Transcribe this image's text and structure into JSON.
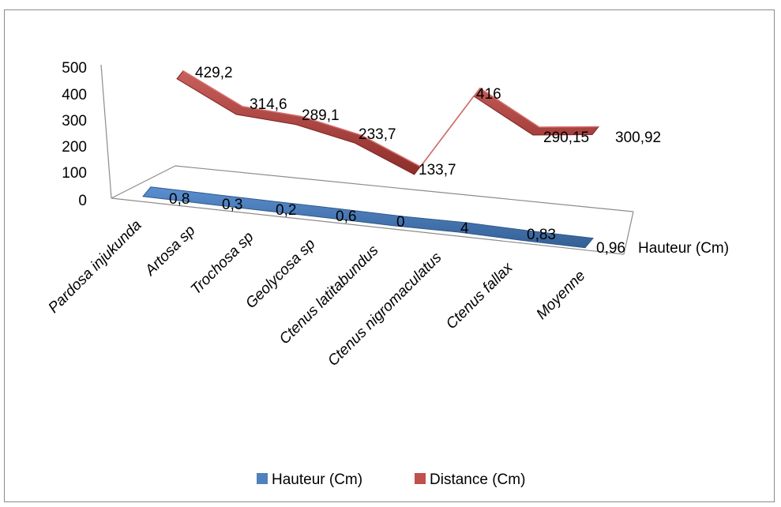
{
  "chart_data": {
    "type": "line",
    "view": "3d",
    "categories": [
      "Pardosa injukunda",
      "Artosa sp",
      "Trochosa sp",
      "Geolycosa sp",
      "Ctenus latitabundus",
      "Ctenus nigromaculatus",
      "Ctenus fallax",
      "Moyenne"
    ],
    "series": [
      {
        "name": "Hauteur (Cm)",
        "values": [
          0.8,
          0.3,
          0.2,
          0.6,
          0,
          4,
          0.83,
          0.96
        ],
        "labels": [
          "0,8",
          "0,3",
          "0,2",
          "0,6",
          "0",
          "4",
          "0,83",
          "0,96"
        ],
        "color": "#4f81bd"
      },
      {
        "name": "Distance (Cm)",
        "values": [
          429.2,
          314.6,
          289.1,
          233.7,
          133.7,
          416,
          290.15,
          300.92
        ],
        "labels": [
          "429,2",
          "314,6",
          "289,1",
          "233,7",
          "133,7",
          "416",
          "290,15",
          "300,92"
        ],
        "color": "#c0504d"
      }
    ],
    "y_ticks": [
      "0",
      "100",
      "200",
      "300",
      "400",
      "500"
    ],
    "ylim": [
      0,
      500
    ],
    "depth_axis_label": "Hauteur (Cm)",
    "legend": "bottom"
  }
}
